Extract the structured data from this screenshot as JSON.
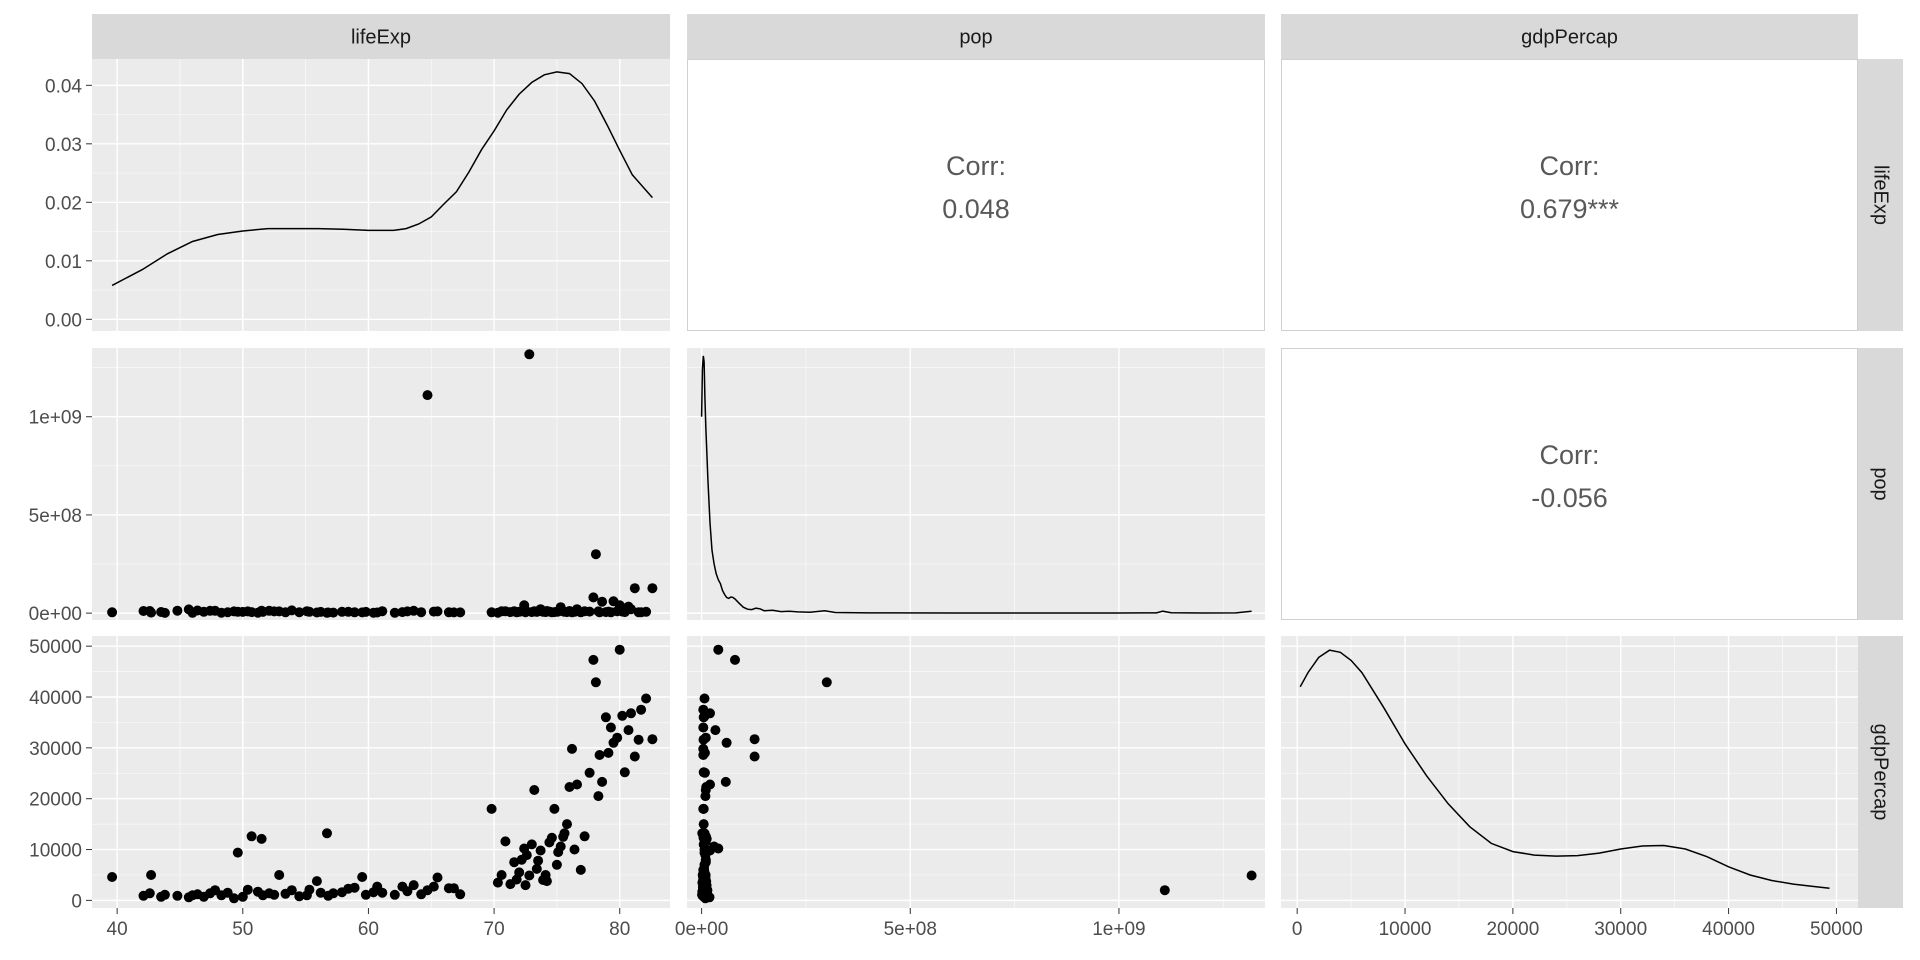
{
  "chart_data": {
    "type": "scatter-matrix",
    "variables": [
      "lifeExp",
      "pop",
      "gdpPercap"
    ],
    "colors": {
      "panel_bg": "#ebebeb",
      "grid_major": "#ffffff",
      "strip_bg": "#d9d9d9",
      "mark": "#000000",
      "corr_text": "#595959",
      "tick_text": "#4d4d4d"
    },
    "axes": {
      "lifeExp": {
        "range": [
          38,
          84
        ],
        "ticks": [
          40,
          50,
          60,
          70,
          80
        ],
        "tick_labels": [
          "40",
          "50",
          "60",
          "70",
          "80"
        ]
      },
      "pop": {
        "range": [
          -35000000.0,
          1350000000.0
        ],
        "ticks": [
          0,
          500000000,
          1000000000
        ],
        "tick_labels": [
          "0e+00",
          "5e+08",
          "1e+09"
        ]
      },
      "gdpPercap": {
        "range": [
          -1500,
          52000
        ],
        "ticks": [
          0,
          10000,
          20000,
          30000,
          40000,
          50000
        ],
        "tick_labels": [
          "0",
          "10000",
          "20000",
          "30000",
          "40000",
          "50000"
        ]
      },
      "density_y": {
        "range": [
          -0.002,
          0.0445
        ],
        "ticks": [
          0,
          0.01,
          0.02,
          0.03,
          0.04
        ],
        "tick_labels": [
          "0.00",
          "0.01",
          "0.02",
          "0.03",
          "0.04"
        ]
      }
    },
    "correlations": [
      {
        "row": 0,
        "col": 1,
        "label": "Corr:",
        "value": "0.048"
      },
      {
        "row": 0,
        "col": 2,
        "label": "Corr:",
        "value": "0.679***"
      },
      {
        "row": 1,
        "col": 2,
        "label": "Corr:",
        "value": "-0.056"
      }
    ],
    "densities": {
      "lifeExp": [
        [
          39.6,
          0.0058
        ],
        [
          42,
          0.0085
        ],
        [
          44,
          0.0112
        ],
        [
          46,
          0.0133
        ],
        [
          48,
          0.0145
        ],
        [
          50,
          0.0151
        ],
        [
          52,
          0.0155
        ],
        [
          54,
          0.0155
        ],
        [
          56,
          0.0155
        ],
        [
          58,
          0.0154
        ],
        [
          60,
          0.0152
        ],
        [
          62,
          0.0152
        ],
        [
          63,
          0.0155
        ],
        [
          64,
          0.0163
        ],
        [
          65,
          0.0175
        ],
        [
          66,
          0.0197
        ],
        [
          67,
          0.0218
        ],
        [
          68,
          0.0252
        ],
        [
          69,
          0.029
        ],
        [
          70,
          0.0322
        ],
        [
          71,
          0.0358
        ],
        [
          72,
          0.0385
        ],
        [
          73,
          0.0405
        ],
        [
          74,
          0.0418
        ],
        [
          75,
          0.0423
        ],
        [
          76,
          0.042
        ],
        [
          77,
          0.0403
        ],
        [
          78,
          0.0373
        ],
        [
          79,
          0.0332
        ],
        [
          80,
          0.0289
        ],
        [
          81,
          0.0247
        ],
        [
          82.6,
          0.0208
        ]
      ],
      "pop": [
        [
          0,
          1000000000
        ],
        [
          2000000,
          1240000000
        ],
        [
          4000000,
          1310000000
        ],
        [
          6000000,
          1280000000
        ],
        [
          8000000,
          1100000000
        ],
        [
          10000000,
          950000000
        ],
        [
          15000000,
          680000000
        ],
        [
          20000000,
          460000000
        ],
        [
          25000000,
          320000000
        ],
        [
          30000000,
          250000000
        ],
        [
          35000000,
          200000000
        ],
        [
          40000000,
          170000000
        ],
        [
          45000000,
          150000000
        ],
        [
          50000000,
          115000000
        ],
        [
          55000000,
          95000000
        ],
        [
          60000000,
          80000000
        ],
        [
          65000000,
          75000000
        ],
        [
          70000000,
          82000000
        ],
        [
          75000000,
          80000000
        ],
        [
          80000000,
          72000000
        ],
        [
          90000000,
          50000000
        ],
        [
          100000000,
          30000000
        ],
        [
          110000000,
          20000000
        ],
        [
          120000000,
          18000000
        ],
        [
          130000000,
          25000000
        ],
        [
          140000000,
          22000000
        ],
        [
          150000000,
          12000000
        ],
        [
          170000000,
          15000000
        ],
        [
          190000000,
          8000000
        ],
        [
          210000000,
          10000000
        ],
        [
          230000000,
          6000000
        ],
        [
          260000000,
          4000000
        ],
        [
          295000000,
          12000000
        ],
        [
          320000000,
          3000000
        ],
        [
          400000000,
          1000000
        ],
        [
          600000000,
          500000
        ],
        [
          800000000,
          500000
        ],
        [
          1000000000,
          500000
        ],
        [
          1090000000,
          1000000
        ],
        [
          1105000000,
          10000000
        ],
        [
          1125000000,
          2000000
        ],
        [
          1200000000,
          600000
        ],
        [
          1280000000,
          1000000
        ],
        [
          1318000000,
          10000000
        ]
      ],
      "gdpPercap": [
        [
          277,
          42000
        ],
        [
          1000,
          44800
        ],
        [
          2000,
          47800
        ],
        [
          3000,
          49200
        ],
        [
          4000,
          48800
        ],
        [
          5000,
          47200
        ],
        [
          6000,
          44800
        ],
        [
          8000,
          38000
        ],
        [
          10000,
          30800
        ],
        [
          12000,
          24500
        ],
        [
          14000,
          19000
        ],
        [
          16000,
          14500
        ],
        [
          18000,
          11200
        ],
        [
          20000,
          9600
        ],
        [
          22000,
          8900
        ],
        [
          24000,
          8700
        ],
        [
          26000,
          8800
        ],
        [
          28000,
          9300
        ],
        [
          30000,
          10100
        ],
        [
          32000,
          10700
        ],
        [
          34000,
          10800
        ],
        [
          36000,
          10100
        ],
        [
          38000,
          8600
        ],
        [
          40000,
          6600
        ],
        [
          42000,
          5000
        ],
        [
          44000,
          3900
        ],
        [
          46000,
          3200
        ],
        [
          48000,
          2700
        ],
        [
          49357,
          2400
        ]
      ]
    },
    "points": [
      [
        39.6,
        4100000,
        4600
      ],
      [
        42.1,
        11000000,
        900
      ],
      [
        42.6,
        11000000,
        1400
      ],
      [
        42.7,
        2600000,
        5000
      ],
      [
        43.5,
        5500000,
        700
      ],
      [
        43.8,
        1400000,
        1100
      ],
      [
        44.8,
        12600000,
        900
      ],
      [
        45.7,
        19000000,
        600
      ],
      [
        46.0,
        1600000,
        1000
      ],
      [
        46.4,
        13300000,
        1200
      ],
      [
        46.9,
        7000000,
        700
      ],
      [
        47.4,
        12000000,
        1400
      ],
      [
        47.8,
        12000000,
        2000
      ],
      [
        48.3,
        2100000,
        1000
      ],
      [
        48.8,
        4500000,
        1500
      ],
      [
        49.3,
        9000000,
        400
      ],
      [
        49.6,
        7000000,
        9400
      ],
      [
        50.0,
        6000000,
        700
      ],
      [
        50.4,
        9000000,
        2100
      ],
      [
        50.7,
        5000000,
        12600
      ],
      [
        51.2,
        2000000,
        1700
      ],
      [
        51.5,
        12300000,
        12100
      ],
      [
        51.6,
        6000000,
        1000
      ],
      [
        52.1,
        11800000,
        1400
      ],
      [
        52.5,
        9000000,
        1100
      ],
      [
        52.9,
        9000000,
        5000
      ],
      [
        53.4,
        4000000,
        1300
      ],
      [
        53.9,
        14000000,
        2000
      ],
      [
        54.5,
        4500000,
        800
      ],
      [
        55.1,
        10000000,
        1000
      ],
      [
        55.3,
        7000000,
        2100
      ],
      [
        55.9,
        3000000,
        3800
      ],
      [
        56.2,
        6000000,
        1500
      ],
      [
        56.7,
        1600000,
        13200
      ],
      [
        56.8,
        3100000,
        900
      ],
      [
        57.2,
        2500000,
        1400
      ],
      [
        57.9,
        6500000,
        1600
      ],
      [
        58.4,
        6500000,
        2300
      ],
      [
        58.9,
        4000000,
        2500
      ],
      [
        59.5,
        3500000,
        4600
      ],
      [
        59.8,
        6000000,
        1100
      ],
      [
        60.4,
        2000000,
        1600
      ],
      [
        60.7,
        3200000,
        2700
      ],
      [
        61.1,
        10000000,
        1500
      ],
      [
        62.1,
        1500000,
        1100
      ],
      [
        62.7,
        5000000,
        2700
      ],
      [
        63.1,
        9000000,
        1800
      ],
      [
        63.6,
        12000000,
        3000
      ],
      [
        64.2,
        4500000,
        1200
      ],
      [
        64.7,
        1110000000,
        2000
      ],
      [
        65.2,
        8000000,
        2700
      ],
      [
        65.5,
        9000000,
        4500
      ],
      [
        66.4,
        4000000,
        2400
      ],
      [
        66.8,
        3500000,
        2400
      ],
      [
        67.3,
        3500000,
        1200
      ],
      [
        69.8,
        4000000,
        18000
      ],
      [
        70.3,
        2000000,
        3500
      ],
      [
        70.6,
        9500000,
        5000
      ],
      [
        70.9,
        10000000,
        11600
      ],
      [
        71.3,
        5000000,
        3200
      ],
      [
        71.6,
        10000000,
        7500
      ],
      [
        71.8,
        4000000,
        4100
      ],
      [
        72.0,
        7000000,
        5500
      ],
      [
        72.2,
        10000000,
        8000
      ],
      [
        72.4,
        40000000,
        10200
      ],
      [
        72.5,
        4500000,
        3000
      ],
      [
        72.6,
        9000000,
        8900
      ],
      [
        72.8,
        1318000000,
        4900
      ],
      [
        73.0,
        5000000,
        11000
      ],
      [
        73.2,
        10000000,
        21700
      ],
      [
        73.4,
        6000000,
        6200
      ],
      [
        73.5,
        10000000,
        7800
      ],
      [
        73.7,
        20000000,
        9800
      ],
      [
        73.9,
        6500000,
        4000
      ],
      [
        74.1,
        5000000,
        5000
      ],
      [
        74.2,
        11000000,
        3800
      ],
      [
        74.4,
        8000000,
        11400
      ],
      [
        74.6,
        4500000,
        12300
      ],
      [
        74.8,
        5000000,
        18000
      ],
      [
        75.0,
        7000000,
        7000
      ],
      [
        75.1,
        8000000,
        9500
      ],
      [
        75.3,
        30000000,
        10600
      ],
      [
        75.5,
        10000000,
        12500
      ],
      [
        75.6,
        7000000,
        13200
      ],
      [
        75.8,
        5000000,
        15000
      ],
      [
        76.0,
        11000000,
        22300
      ],
      [
        76.2,
        4000000,
        29800
      ],
      [
        76.4,
        7000000,
        10000
      ],
      [
        76.6,
        20000000,
        22800
      ],
      [
        76.9,
        4000000,
        6000
      ],
      [
        77.2,
        10000000,
        12600
      ],
      [
        77.6,
        8000000,
        25100
      ],
      [
        77.9,
        80000000,
        47300
      ],
      [
        78.1,
        300000000,
        42900
      ],
      [
        78.3,
        9000000,
        20500
      ],
      [
        78.4,
        4000000,
        28600
      ],
      [
        78.6,
        58000000,
        23300
      ],
      [
        78.9,
        5000000,
        36000
      ],
      [
        79.1,
        8000000,
        29000
      ],
      [
        79.3,
        4000000,
        34000
      ],
      [
        79.5,
        60000000,
        31000
      ],
      [
        79.8,
        10000000,
        32000
      ],
      [
        80.0,
        40000000,
        49300
      ],
      [
        80.2,
        8000000,
        36300
      ],
      [
        80.4,
        5000000,
        25200
      ],
      [
        80.7,
        33000000,
        33500
      ],
      [
        80.9,
        20000000,
        36800
      ],
      [
        81.2,
        127000000,
        28300
      ],
      [
        81.5,
        4500000,
        31600
      ],
      [
        81.7,
        4000000,
        37500
      ],
      [
        82.1,
        7000000,
        39700
      ],
      [
        82.6,
        127000000,
        31700
      ]
    ]
  }
}
